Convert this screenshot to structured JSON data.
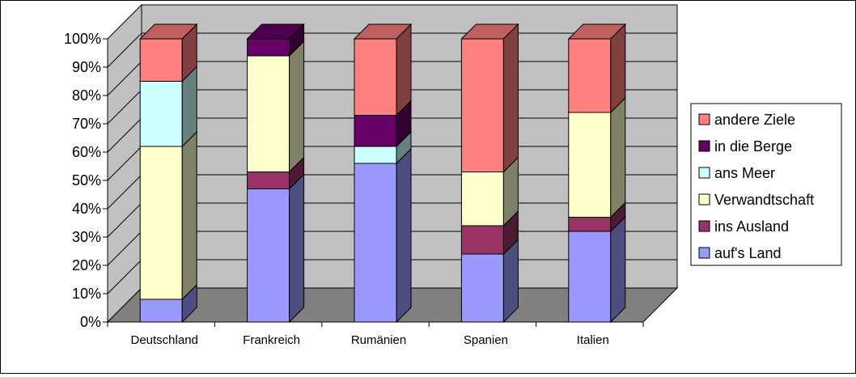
{
  "chart_data": {
    "type": "bar",
    "stacked": true,
    "percent_stacked": true,
    "three_d": true,
    "categories": [
      "Deutschland",
      "Frankreich",
      "Rumänien",
      "Spanien",
      "Italien"
    ],
    "series": [
      {
        "name": "auf's Land",
        "color": "#9999FF",
        "values": [
          8,
          47,
          56,
          24,
          32
        ]
      },
      {
        "name": "ins Ausland",
        "color": "#993366",
        "values": [
          0,
          6,
          0,
          10,
          5
        ]
      },
      {
        "name": "Verwandtschaft",
        "color": "#FFFFCC",
        "values": [
          54,
          41,
          0,
          19,
          37
        ]
      },
      {
        "name": "ans Meer",
        "color": "#CCFFFF",
        "values": [
          23,
          0,
          6,
          0,
          0
        ]
      },
      {
        "name": "in die Berge",
        "color": "#660066",
        "values": [
          0,
          6,
          11,
          0,
          0
        ]
      },
      {
        "name": "andere Ziele",
        "color": "#FF8080",
        "values": [
          15,
          0,
          27,
          47,
          26
        ]
      }
    ],
    "legend_order": [
      "andere Ziele",
      "in die Berge",
      "ans Meer",
      "Verwandtschaft",
      "ins Ausland",
      "auf's Land"
    ],
    "y_ticks": [
      "0%",
      "10%",
      "20%",
      "30%",
      "40%",
      "50%",
      "60%",
      "70%",
      "80%",
      "90%",
      "100%"
    ],
    "ylim": [
      0,
      100
    ],
    "grid": true,
    "legend_position": "right",
    "wall_color": "#C0C0C0",
    "floor_color": "#808080"
  }
}
